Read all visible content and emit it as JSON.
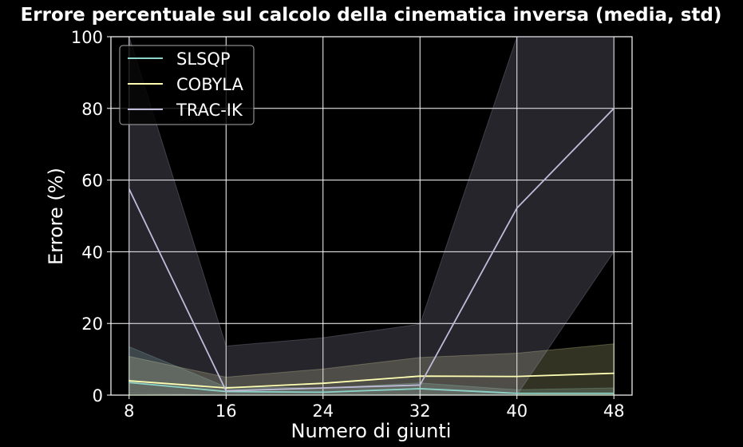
{
  "chart_data": {
    "type": "line",
    "title": "Errore percentuale sul calcolo della cinematica inversa (media, std)",
    "xlabel": "Numero di giunti",
    "ylabel": "Errore (%)",
    "x": [
      8,
      16,
      24,
      32,
      40,
      48
    ],
    "xticks": [
      "8",
      "16",
      "24",
      "32",
      "40",
      "48"
    ],
    "yticks": [
      "0",
      "20",
      "40",
      "60",
      "80",
      "100"
    ],
    "xlim": [
      6.5,
      49.5
    ],
    "ylim": [
      0,
      100
    ],
    "grid": true,
    "legend_position": "top-left",
    "series": [
      {
        "name": "SLSQP",
        "color": "#8dd3c7",
        "values": [
          3.5,
          1.0,
          0.8,
          1.8,
          0.5,
          0.5
        ],
        "std": [
          10.0,
          1.3,
          1.2,
          1.6,
          1.0,
          1.5
        ]
      },
      {
        "name": "COBYLA",
        "color": "#feffb3",
        "values": [
          4.0,
          2.0,
          3.3,
          5.3,
          5.2,
          6.1
        ],
        "std": [
          6.8,
          3.0,
          4.0,
          5.2,
          6.5,
          8.2
        ]
      },
      {
        "name": "TRAC-IK",
        "color": "#bfbbd9",
        "values": [
          57.5,
          1.2,
          2.0,
          2.8,
          52.2,
          80.0
        ],
        "std": [
          57.0,
          12.5,
          14.0,
          17.0,
          60.0,
          40.0
        ]
      }
    ]
  }
}
